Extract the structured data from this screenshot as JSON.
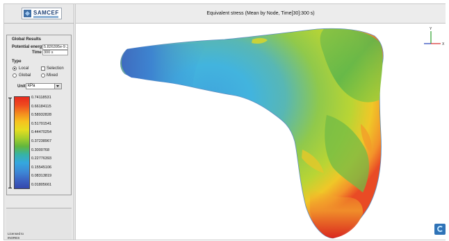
{
  "app": {
    "logo_text": "SAMCEF"
  },
  "title": "Equivalent stress (Mean by Node, Time[30]:300 s)",
  "global_results": {
    "group_label": "Global Results",
    "potential_energy_label": "Potential energy",
    "potential_energy_value": "5.826395e-9 J",
    "time_label": "Time",
    "time_value": "300 s"
  },
  "type": {
    "group_label": "Type",
    "options": [
      {
        "label": "Local",
        "control": "radio",
        "checked": true
      },
      {
        "label": "Selection",
        "control": "checkbox",
        "checked": false
      },
      {
        "label": "Global",
        "control": "radio",
        "checked": false
      },
      {
        "label": "Mixed",
        "control": "radio",
        "checked": false
      }
    ]
  },
  "unit": {
    "label": "Unit",
    "selected": "kPa"
  },
  "legend": {
    "levels": [
      "0.74118531",
      "0.66184115",
      "0.58932828",
      "0.51701541",
      "0.44470254",
      "0.37238967",
      "0.3000768",
      "0.22776393",
      "0.15545106",
      "0.08313819",
      "0.01805661"
    ],
    "colors": {
      "max": "#e82a1e",
      "orange": "#f38a1f",
      "yellow": "#e5dd21",
      "green": "#62b73d",
      "cyan": "#35a7df",
      "min": "#3447ad"
    }
  },
  "footer": {
    "licensed_to_label": "Licensed to",
    "licensee": "INORES"
  },
  "axes": {
    "y_label": "Y",
    "x_label": "X"
  },
  "icons": {
    "triad": "axis-triad-icon",
    "corner": "samcef-logo-icon"
  }
}
